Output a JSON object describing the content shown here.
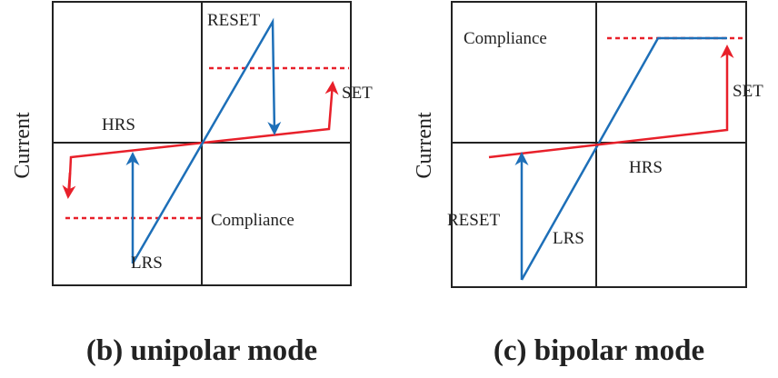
{
  "panels": [
    {
      "caption": "(b) unipolar mode",
      "y_label": "Current",
      "labels": {
        "reset": "RESET",
        "set": "SET",
        "hrs": "HRS",
        "lrs": "LRS",
        "compliance": "Compliance"
      }
    },
    {
      "caption": "(c) bipolar mode",
      "y_label": "Current",
      "labels": {
        "reset": "RESET",
        "set": "SET",
        "hrs": "HRS",
        "lrs": "LRS",
        "compliance": "Compliance"
      }
    }
  ]
}
